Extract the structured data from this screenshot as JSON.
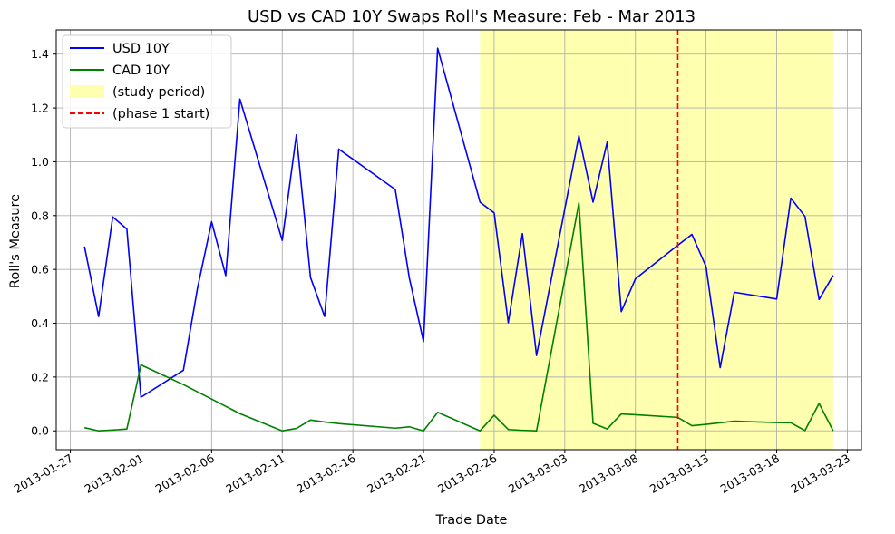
{
  "chart_data": {
    "type": "line",
    "title": "USD vs CAD 10Y Swaps Roll's Measure: Feb - Mar 2013",
    "xlabel": "Trade Date",
    "ylabel": "Roll's Measure",
    "xlim": [
      "2013-01-26",
      "2013-03-24"
    ],
    "ylim": [
      -0.07,
      1.49
    ],
    "grid": true,
    "legend_position": "top-left",
    "x_ticks": [
      "2013-01-27",
      "2013-02-01",
      "2013-02-06",
      "2013-02-11",
      "2013-02-16",
      "2013-02-21",
      "2013-02-26",
      "2013-03-03",
      "2013-03-08",
      "2013-03-13",
      "2013-03-18",
      "2013-03-23"
    ],
    "y_ticks": [
      0.0,
      0.2,
      0.4,
      0.6,
      0.8,
      1.0,
      1.2,
      1.4
    ],
    "y_tick_labels": [
      "0.0",
      "0.2",
      "0.4",
      "0.6",
      "0.8",
      "1.0",
      "1.2",
      "1.4"
    ],
    "x": [
      "2013-01-28",
      "2013-01-29",
      "2013-01-30",
      "2013-01-31",
      "2013-02-01",
      "2013-02-04",
      "2013-02-05",
      "2013-02-06",
      "2013-02-07",
      "2013-02-08",
      "2013-02-11",
      "2013-02-12",
      "2013-02-13",
      "2013-02-14",
      "2013-02-15",
      "2013-02-19",
      "2013-02-20",
      "2013-02-21",
      "2013-02-22",
      "2013-02-25",
      "2013-02-26",
      "2013-02-27",
      "2013-02-28",
      "2013-03-01",
      "2013-03-04",
      "2013-03-05",
      "2013-03-06",
      "2013-03-07",
      "2013-03-08",
      "2013-03-11",
      "2013-03-12",
      "2013-03-13",
      "2013-03-14",
      "2013-03-15",
      "2013-03-18",
      "2013-03-19",
      "2013-03-20",
      "2013-03-21",
      "2013-03-22"
    ],
    "series": [
      {
        "name": "USD 10Y",
        "color": "#0000ff",
        "values": [
          0.685,
          0.425,
          0.795,
          0.75,
          0.125,
          0.225,
          0.53,
          0.777,
          0.577,
          1.233,
          0.708,
          1.1,
          0.57,
          0.425,
          1.047,
          0.897,
          0.567,
          0.332,
          1.422,
          0.85,
          0.81,
          0.402,
          0.733,
          0.28,
          1.097,
          0.85,
          1.073,
          0.443,
          0.565,
          0.69,
          0.73,
          0.61,
          0.235,
          0.515,
          0.49,
          0.865,
          0.797,
          0.488,
          0.578
        ]
      },
      {
        "name": "CAD 10Y",
        "color": "#008000",
        "values": [
          0.012,
          0.0,
          0.003,
          0.007,
          0.245,
          0.172,
          0.145,
          0.118,
          0.091,
          0.064,
          0.0,
          0.009,
          0.04,
          0.033,
          0.027,
          0.01,
          0.015,
          0.0,
          0.069,
          0.0,
          0.058,
          0.005,
          0.002,
          0.0,
          0.847,
          0.028,
          0.007,
          0.063,
          0.06,
          0.05,
          0.019,
          0.024,
          0.03,
          0.036,
          0.031,
          0.03,
          0.001,
          0.102,
          0.0
        ]
      }
    ],
    "shaded_region": {
      "label": "(study period)",
      "start": "2013-02-25",
      "end": "2013-03-22",
      "color": "#ffffb0"
    },
    "vertical_line": {
      "label": "(phase 1 start)",
      "x": "2013-03-11",
      "color": "#ff0000",
      "style": "dashed"
    }
  }
}
